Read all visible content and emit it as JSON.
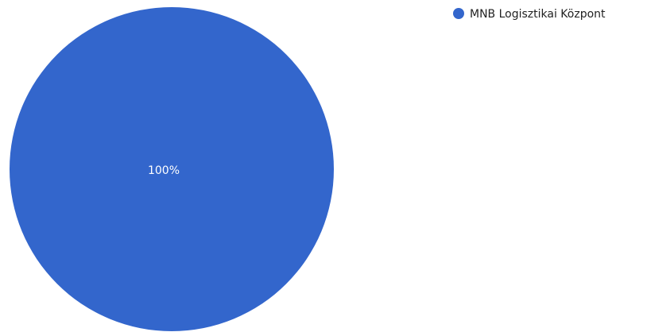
{
  "chart_data": {
    "type": "pie",
    "title": "",
    "legend_position": "top-right",
    "slices": [
      {
        "label": "MNB Logisztikai Központ",
        "value": 100,
        "percent_label": "100%",
        "color": "#3366cc"
      }
    ]
  }
}
